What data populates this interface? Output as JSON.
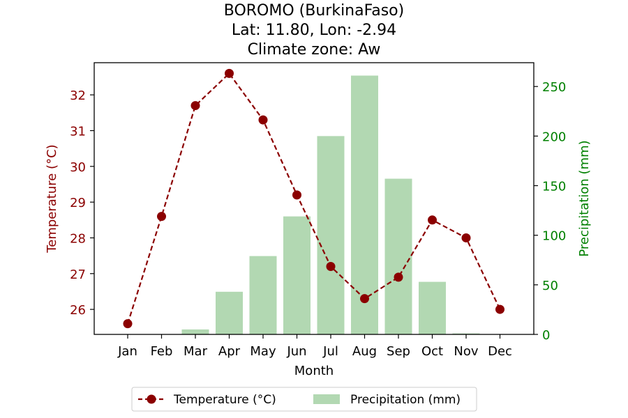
{
  "chart_data": {
    "type": "bar+line",
    "title": [
      "BOROMO (BurkinaFaso)",
      "Lat: 11.80, Lon: -2.94",
      "Climate zone: Aw"
    ],
    "xlabel": "Month",
    "categories": [
      "Jan",
      "Feb",
      "Mar",
      "Apr",
      "May",
      "Jun",
      "Jul",
      "Aug",
      "Sep",
      "Oct",
      "Nov",
      "Dec"
    ],
    "series": [
      {
        "name": "Temperature (°C)",
        "kind": "line",
        "axis": "left",
        "values": [
          25.6,
          28.6,
          31.7,
          32.6,
          31.3,
          29.2,
          27.2,
          26.3,
          26.9,
          28.5,
          28.0,
          26.0
        ]
      },
      {
        "name": "Precipitation (mm)",
        "kind": "bar",
        "axis": "right",
        "values": [
          0,
          0,
          5,
          43,
          79,
          119,
          200,
          261,
          157,
          53,
          1,
          0
        ]
      }
    ],
    "ylabel_left": "Temperature (°C)",
    "ylabel_right": "Precipitation (mm)",
    "ylim_left": [
      25.3,
      32.9
    ],
    "ylim_right": [
      0,
      274
    ],
    "yticks_left": [
      26,
      27,
      28,
      29,
      30,
      31,
      32
    ],
    "yticks_right": [
      0,
      50,
      100,
      150,
      200,
      250
    ],
    "legend_position": "bottom-center",
    "colors": {
      "temperature": "#8b0000",
      "precipitation_bar": "#b2d8b2",
      "right_axis": "#008000"
    }
  }
}
